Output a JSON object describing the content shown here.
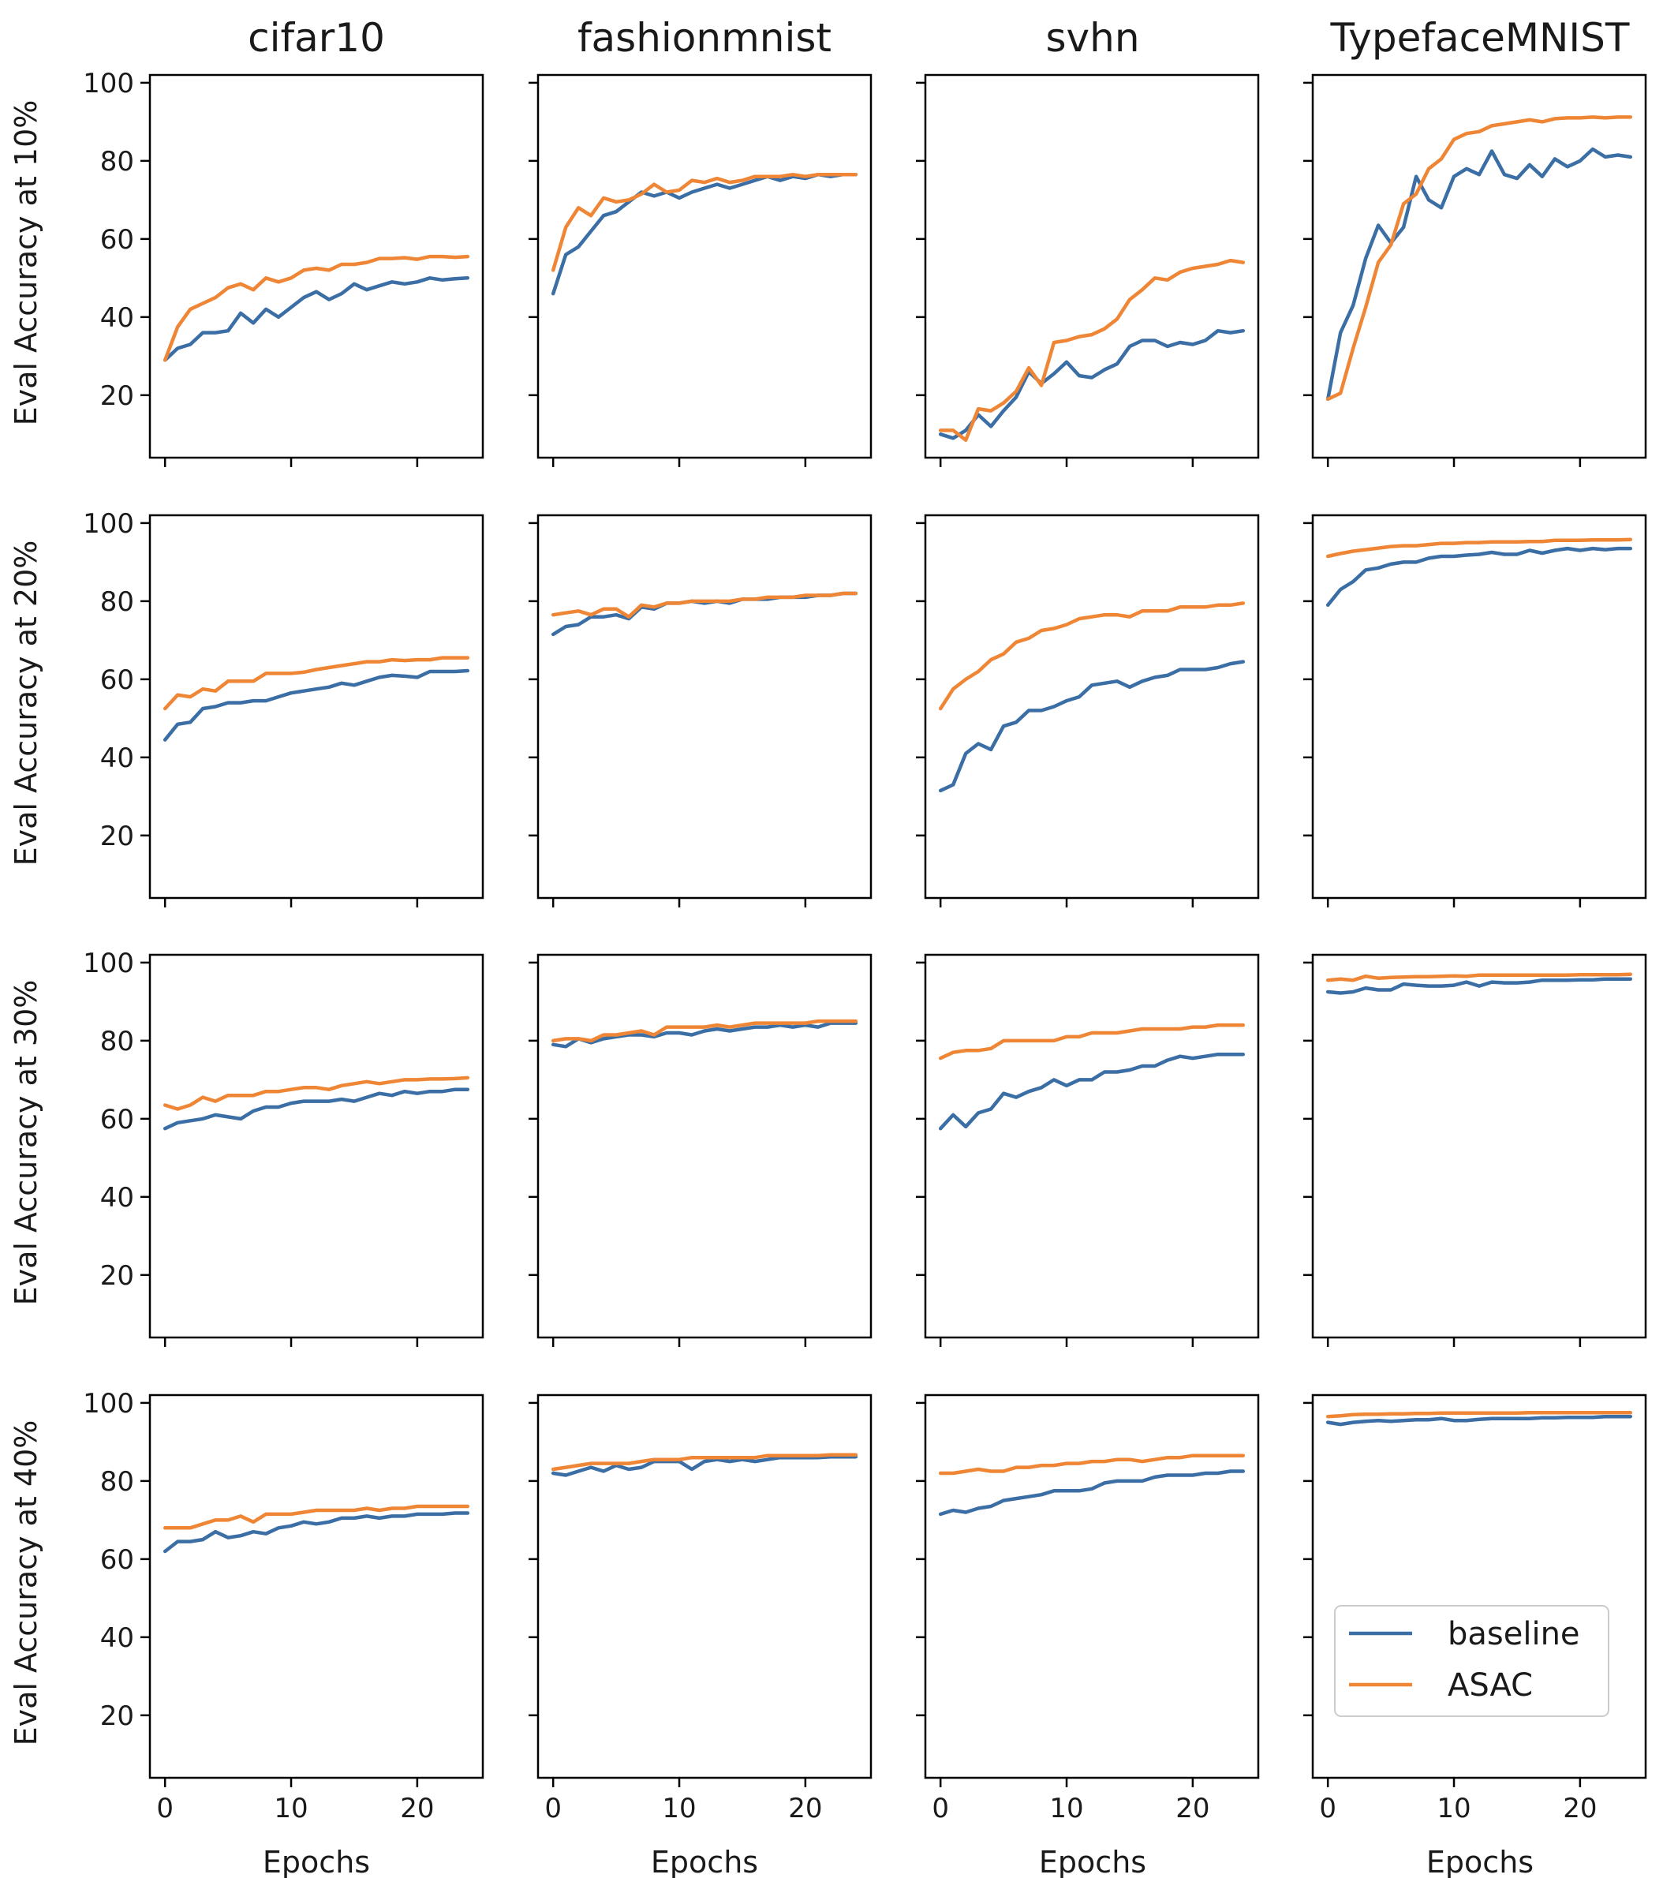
{
  "chart_data": {
    "type": "line",
    "title": "",
    "columns": [
      "cifar10",
      "fashionmnist",
      "svhn",
      "TypefaceMNIST"
    ],
    "row_labels": [
      "Eval Accuracy at 10%",
      "Eval Accuracy at 20%",
      "Eval Accuracy at 30%",
      "Eval Accuracy at 40%"
    ],
    "xlabel": "Epochs",
    "xlim": [
      -1.2,
      25.2
    ],
    "ylim": [
      4,
      102
    ],
    "xticks": [
      0,
      10,
      20
    ],
    "yticks": [
      20,
      40,
      60,
      80,
      100
    ],
    "x": [
      0,
      1,
      2,
      3,
      4,
      5,
      6,
      7,
      8,
      9,
      10,
      11,
      12,
      13,
      14,
      15,
      16,
      17,
      18,
      19,
      20,
      21,
      22,
      23,
      24
    ],
    "legend": {
      "location": "lower-right panel, center",
      "entries": [
        {
          "name": "baseline",
          "color": "#3a6ea5"
        },
        {
          "name": "ASAC",
          "color": "#ef8636"
        }
      ]
    },
    "panels": [
      [
        {
          "dataset": "cifar10",
          "noise": "10%",
          "baseline": [
            29,
            32,
            33,
            36,
            36,
            36.5,
            41,
            38.5,
            42,
            40,
            42.5,
            45,
            46.5,
            44.5,
            46,
            48.5,
            47,
            48,
            49,
            48.5,
            49,
            50,
            49.5,
            49.8,
            50
          ],
          "ASAC": [
            29,
            37.5,
            42,
            43.5,
            45,
            47.5,
            48.5,
            47,
            50,
            49,
            50,
            52,
            52.5,
            52,
            53.5,
            53.5,
            54,
            55,
            55,
            55.2,
            54.8,
            55.5,
            55.5,
            55.3,
            55.5
          ]
        },
        {
          "dataset": "fashionmnist",
          "noise": "10%",
          "baseline": [
            46,
            56,
            58,
            62,
            66,
            67,
            69.5,
            72,
            71,
            72,
            70.5,
            72,
            73,
            74,
            73,
            74,
            75,
            76,
            75,
            76,
            75.5,
            76.5,
            76,
            76.5,
            76.5
          ],
          "ASAC": [
            52,
            63,
            68,
            66,
            70.5,
            69.5,
            70,
            71.5,
            74,
            72,
            72.5,
            75,
            74.5,
            75.5,
            74.5,
            75,
            76,
            76,
            76,
            76.5,
            76,
            76.5,
            76.5,
            76.5,
            76.5
          ]
        },
        {
          "dataset": "svhn",
          "noise": "10%",
          "baseline": [
            10,
            9,
            11,
            15,
            12,
            16,
            19.5,
            26,
            23,
            25.5,
            28.5,
            25,
            24.5,
            26.5,
            28,
            32.5,
            34,
            34,
            32.5,
            33.5,
            33,
            34,
            36.5,
            36,
            36.5
          ],
          "ASAC": [
            11,
            11,
            8.5,
            16.5,
            16,
            18,
            21,
            27,
            22.5,
            33.5,
            34,
            35,
            35.5,
            37,
            39.5,
            44.5,
            47,
            50,
            49.5,
            51.5,
            52.5,
            53,
            53.5,
            54.5,
            54
          ]
        },
        {
          "dataset": "TypefaceMNIST",
          "noise": "10%",
          "baseline": [
            19,
            36,
            43,
            55,
            63.5,
            59,
            63,
            76,
            70,
            68,
            76,
            78,
            76.5,
            82.5,
            76.5,
            75.5,
            79,
            76,
            80.5,
            78.5,
            80,
            83,
            81,
            81.5,
            81
          ],
          "ASAC": [
            19,
            20.5,
            32,
            42.5,
            54,
            58.5,
            69,
            71.5,
            78,
            80.5,
            85.5,
            87,
            87.5,
            89,
            89.5,
            90,
            90.5,
            90,
            90.8,
            91,
            91,
            91.2,
            91,
            91.2,
            91.2
          ]
        }
      ],
      [
        {
          "dataset": "cifar10",
          "noise": "20%",
          "baseline": [
            44.5,
            48.5,
            49,
            52.5,
            53,
            54,
            54,
            54.5,
            54.5,
            55.5,
            56.5,
            57,
            57.5,
            58,
            59,
            58.5,
            59.5,
            60.5,
            61,
            60.8,
            60.5,
            62,
            62,
            62,
            62.2
          ],
          "ASAC": [
            52.5,
            56,
            55.5,
            57.5,
            57,
            59.5,
            59.5,
            59.5,
            61.5,
            61.5,
            61.5,
            61.8,
            62.5,
            63,
            63.5,
            64,
            64.5,
            64.5,
            65,
            64.8,
            65,
            65,
            65.5,
            65.5,
            65.5
          ]
        },
        {
          "dataset": "fashionmnist",
          "noise": "20%",
          "baseline": [
            71.5,
            73.5,
            74,
            76,
            76,
            76.5,
            75.5,
            78.5,
            78,
            79.5,
            79.5,
            80,
            79.5,
            80,
            79.5,
            80.5,
            80.5,
            80.5,
            81,
            81,
            81,
            81.5,
            81.5,
            82,
            82
          ],
          "ASAC": [
            76.5,
            77,
            77.5,
            76.5,
            78,
            78,
            76,
            79,
            78.5,
            79.5,
            79.5,
            80,
            80,
            80,
            80,
            80.5,
            80.5,
            81,
            81,
            81,
            81.5,
            81.5,
            81.5,
            82,
            82
          ]
        },
        {
          "dataset": "svhn",
          "noise": "20%",
          "baseline": [
            31.5,
            33,
            41,
            43.5,
            42,
            48,
            49,
            52,
            52,
            53,
            54.5,
            55.5,
            58.5,
            59,
            59.5,
            58,
            59.5,
            60.5,
            61,
            62.5,
            62.5,
            62.5,
            63,
            64,
            64.5
          ],
          "ASAC": [
            52.5,
            57.5,
            60,
            62,
            65,
            66.5,
            69.5,
            70.5,
            72.5,
            73,
            74,
            75.5,
            76,
            76.5,
            76.5,
            76,
            77.5,
            77.5,
            77.5,
            78.5,
            78.5,
            78.5,
            79,
            79,
            79.5
          ]
        },
        {
          "dataset": "TypefaceMNIST",
          "noise": "20%",
          "baseline": [
            79,
            83,
            85,
            88,
            88.5,
            89.5,
            90,
            90,
            91,
            91.5,
            91.5,
            91.8,
            92,
            92.5,
            92,
            92,
            93,
            92.3,
            93,
            93.5,
            93,
            93.5,
            93.2,
            93.5,
            93.5
          ],
          "ASAC": [
            91.5,
            92.2,
            92.8,
            93.2,
            93.6,
            94,
            94.2,
            94.2,
            94.5,
            94.8,
            94.8,
            95,
            95,
            95.2,
            95.2,
            95.2,
            95.3,
            95.3,
            95.6,
            95.6,
            95.6,
            95.7,
            95.7,
            95.7,
            95.8
          ]
        }
      ],
      [
        {
          "dataset": "cifar10",
          "noise": "30%",
          "baseline": [
            57.5,
            59,
            59.5,
            60,
            61,
            60.5,
            60,
            62,
            63,
            63,
            64,
            64.5,
            64.5,
            64.5,
            65,
            64.5,
            65.5,
            66.5,
            66,
            67,
            66.5,
            67,
            67,
            67.5,
            67.5
          ],
          "ASAC": [
            63.5,
            62.5,
            63.5,
            65.5,
            64.5,
            66,
            66,
            66,
            67,
            67,
            67.5,
            68,
            68,
            67.5,
            68.5,
            69,
            69.5,
            69,
            69.5,
            70,
            70,
            70.2,
            70.2,
            70.3,
            70.5
          ]
        },
        {
          "dataset": "fashionmnist",
          "noise": "30%",
          "baseline": [
            79,
            78.5,
            80.5,
            79.5,
            80.5,
            81,
            81.5,
            81.5,
            81,
            82,
            82,
            81.5,
            82.5,
            83,
            82.5,
            83,
            83.5,
            83.5,
            84,
            83.5,
            84,
            83.5,
            84.5,
            84.5,
            84.5
          ],
          "ASAC": [
            80,
            80.5,
            80.5,
            80,
            81.5,
            81.5,
            82,
            82.5,
            81.5,
            83.5,
            83.5,
            83.5,
            83.5,
            84,
            83.5,
            84,
            84.5,
            84.5,
            84.5,
            84.5,
            84.5,
            85,
            85,
            85,
            85
          ]
        },
        {
          "dataset": "svhn",
          "noise": "30%",
          "baseline": [
            57.5,
            61,
            58,
            61.5,
            62.5,
            66.5,
            65.5,
            67,
            68,
            70,
            68.5,
            70,
            70,
            72,
            72,
            72.5,
            73.5,
            73.5,
            75,
            76,
            75.5,
            76,
            76.5,
            76.5,
            76.5
          ],
          "ASAC": [
            75.5,
            77,
            77.5,
            77.5,
            78,
            80,
            80,
            80,
            80,
            80,
            81,
            81,
            82,
            82,
            82,
            82.5,
            83,
            83,
            83,
            83,
            83.5,
            83.5,
            84,
            84,
            84
          ]
        },
        {
          "dataset": "TypefaceMNIST",
          "noise": "30%",
          "baseline": [
            92.5,
            92.2,
            92.5,
            93.5,
            93,
            93,
            94.5,
            94.2,
            94,
            94,
            94.2,
            95,
            94,
            95,
            94.8,
            94.8,
            95,
            95.5,
            95.5,
            95.5,
            95.6,
            95.6,
            95.8,
            95.8,
            95.8
          ],
          "ASAC": [
            95.5,
            95.8,
            95.5,
            96.5,
            96,
            96.2,
            96.3,
            96.4,
            96.4,
            96.5,
            96.6,
            96.5,
            96.8,
            96.8,
            96.8,
            96.8,
            96.8,
            96.8,
            96.8,
            96.8,
            96.9,
            96.9,
            96.9,
            96.9,
            97
          ]
        }
      ],
      [
        {
          "dataset": "cifar10",
          "noise": "40%",
          "baseline": [
            62,
            64.5,
            64.5,
            65,
            67,
            65.5,
            66,
            67,
            66.5,
            68,
            68.5,
            69.5,
            69,
            69.5,
            70.5,
            70.5,
            71,
            70.5,
            71,
            71,
            71.5,
            71.5,
            71.5,
            71.8,
            71.8
          ],
          "ASAC": [
            68,
            68,
            68,
            69,
            70,
            70,
            71,
            69.5,
            71.5,
            71.5,
            71.5,
            72,
            72.5,
            72.5,
            72.5,
            72.5,
            73,
            72.5,
            73,
            73,
            73.5,
            73.5,
            73.5,
            73.5,
            73.5
          ]
        },
        {
          "dataset": "fashionmnist",
          "noise": "40%",
          "baseline": [
            82,
            81.5,
            82.5,
            83.5,
            82.5,
            84,
            83,
            83.5,
            85,
            85,
            85,
            83,
            85,
            85.5,
            85,
            85.5,
            85,
            85.5,
            86,
            86,
            86,
            86,
            86.2,
            86.2,
            86.2
          ],
          "ASAC": [
            83,
            83.5,
            84,
            84.5,
            84.5,
            84.5,
            84.5,
            85,
            85.5,
            85.5,
            85.5,
            86,
            86,
            86,
            86,
            86,
            86,
            86.5,
            86.5,
            86.5,
            86.5,
            86.5,
            86.7,
            86.7,
            86.7
          ]
        },
        {
          "dataset": "svhn",
          "noise": "40%",
          "baseline": [
            71.5,
            72.5,
            72,
            73,
            73.5,
            75,
            75.5,
            76,
            76.5,
            77.5,
            77.5,
            77.5,
            78,
            79.5,
            80,
            80,
            80,
            81,
            81.5,
            81.5,
            81.5,
            82,
            82,
            82.5,
            82.5
          ],
          "ASAC": [
            82,
            82,
            82.5,
            83,
            82.5,
            82.5,
            83.5,
            83.5,
            84,
            84,
            84.5,
            84.5,
            85,
            85,
            85.5,
            85.5,
            85,
            85.5,
            86,
            86,
            86.5,
            86.5,
            86.5,
            86.5,
            86.5
          ]
        },
        {
          "dataset": "TypefaceMNIST",
          "noise": "40%",
          "baseline": [
            95,
            94.5,
            95,
            95.3,
            95.5,
            95.3,
            95.5,
            95.7,
            95.7,
            96,
            95.5,
            95.5,
            95.8,
            96,
            96,
            96,
            96,
            96.2,
            96.2,
            96.3,
            96.3,
            96.3,
            96.5,
            96.5,
            96.5
          ],
          "ASAC": [
            96.5,
            96.7,
            97,
            97.1,
            97.1,
            97.2,
            97.2,
            97.3,
            97.3,
            97.4,
            97.4,
            97.4,
            97.4,
            97.4,
            97.4,
            97.4,
            97.5,
            97.5,
            97.5,
            97.5,
            97.5,
            97.5,
            97.5,
            97.5,
            97.5
          ]
        }
      ]
    ]
  }
}
